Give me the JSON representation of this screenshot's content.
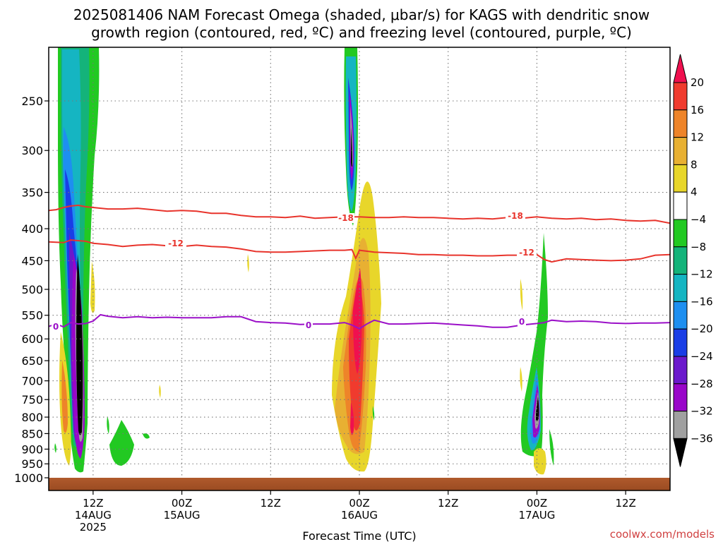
{
  "title_line1": "2025081406 NAM Forecast Omega (shaded, μbar/s) for KAGS with dendritic snow",
  "title_line2": "growth region (contoured, red, ºC) and freezing level (contoured, purple, ºC)",
  "credit": "coolwx.com/models",
  "chart_data": {
    "type": "time-height contour",
    "xlabel": "Forecast Time (UTC)",
    "ylabel": "",
    "y_scale": "log pressure (hPa), inverted",
    "ylim": [
      1000,
      200
    ],
    "y_ticks": [
      250,
      300,
      350,
      400,
      450,
      500,
      550,
      600,
      650,
      700,
      750,
      800,
      850,
      900,
      950,
      1000
    ],
    "x_ticks": [
      {
        "hours": 6,
        "label": "12Z",
        "sub1": "14AUG",
        "sub2": "2025"
      },
      {
        "hours": 18,
        "label": "00Z",
        "sub1": "15AUG",
        "sub2": ""
      },
      {
        "hours": 30,
        "label": "12Z",
        "sub1": "",
        "sub2": ""
      },
      {
        "hours": 42,
        "label": "00Z",
        "sub1": "16AUG",
        "sub2": ""
      },
      {
        "hours": 54,
        "label": "12Z",
        "sub1": "",
        "sub2": ""
      },
      {
        "hours": 66,
        "label": "00Z",
        "sub1": "17AUG",
        "sub2": ""
      },
      {
        "hours": 78,
        "label": "12Z",
        "sub1": "",
        "sub2": ""
      }
    ],
    "xlim_hours": [
      0,
      84
    ],
    "grid": true,
    "colorbar": {
      "levels": [
        20,
        16,
        12,
        8,
        4,
        -4,
        -8,
        -12,
        -16,
        -20,
        -24,
        -28,
        -32,
        -36
      ],
      "colors": [
        "#f0104f",
        "#f03b2e",
        "#ee8429",
        "#e8b032",
        "#e8d62a",
        "#ffffff",
        "#22c922",
        "#14b37a",
        "#15b5c2",
        "#1e8ff0",
        "#1a3ee6",
        "#6b19cc",
        "#9906c9",
        "#a0a0a0",
        "#000000"
      ]
    },
    "contour_labels": [
      {
        "text": "-18",
        "color": "#e8342c"
      },
      {
        "text": "-18",
        "color": "#e8342c"
      },
      {
        "text": "-12",
        "color": "#e8342c"
      },
      {
        "text": "-12",
        "color": "#e8342c"
      },
      {
        "text": "0",
        "color": "#9b10c8"
      },
      {
        "text": "0",
        "color": "#9b10c8"
      },
      {
        "text": "0",
        "color": "#9b10c8"
      }
    ],
    "isotherms": [
      {
        "name": "-18",
        "color": "#e8342c",
        "points": [
          [
            0,
            374
          ],
          [
            1,
            373
          ],
          [
            2,
            370
          ],
          [
            3,
            368
          ],
          [
            4,
            367
          ],
          [
            5,
            369
          ],
          [
            6,
            370
          ],
          [
            8,
            372
          ],
          [
            10,
            372
          ],
          [
            12,
            371
          ],
          [
            14,
            373
          ],
          [
            16,
            375
          ],
          [
            18,
            374
          ],
          [
            20,
            375
          ],
          [
            22,
            378
          ],
          [
            24,
            378
          ],
          [
            26,
            381
          ],
          [
            28,
            383
          ],
          [
            30,
            383
          ],
          [
            32,
            384
          ],
          [
            34,
            382
          ],
          [
            36,
            385
          ],
          [
            38,
            384
          ],
          [
            40,
            383
          ],
          [
            42,
            383
          ],
          [
            44,
            384
          ],
          [
            46,
            384
          ],
          [
            48,
            383
          ],
          [
            50,
            384
          ],
          [
            52,
            384
          ],
          [
            54,
            385
          ],
          [
            56,
            386
          ],
          [
            58,
            385
          ],
          [
            60,
            386
          ],
          [
            62,
            384
          ],
          [
            64,
            385
          ],
          [
            66,
            383
          ],
          [
            68,
            385
          ],
          [
            70,
            386
          ],
          [
            72,
            385
          ],
          [
            74,
            387
          ],
          [
            76,
            386
          ],
          [
            78,
            388
          ],
          [
            80,
            389
          ],
          [
            82,
            388
          ],
          [
            84,
            392
          ]
        ]
      },
      {
        "name": "-12",
        "color": "#e8342c",
        "points": [
          [
            0,
            420
          ],
          [
            2,
            421
          ],
          [
            3,
            417
          ],
          [
            4,
            418
          ],
          [
            5,
            419
          ],
          [
            6,
            422
          ],
          [
            8,
            424
          ],
          [
            10,
            427
          ],
          [
            12,
            425
          ],
          [
            14,
            424
          ],
          [
            16,
            426
          ],
          [
            18,
            427
          ],
          [
            20,
            425
          ],
          [
            22,
            427
          ],
          [
            24,
            428
          ],
          [
            26,
            431
          ],
          [
            28,
            435
          ],
          [
            30,
            436
          ],
          [
            32,
            436
          ],
          [
            34,
            435
          ],
          [
            36,
            434
          ],
          [
            38,
            433
          ],
          [
            40,
            433
          ],
          [
            41,
            432
          ],
          [
            41.5,
            446
          ],
          [
            42,
            433
          ],
          [
            44,
            436
          ],
          [
            46,
            437
          ],
          [
            48,
            438
          ],
          [
            50,
            440
          ],
          [
            52,
            440
          ],
          [
            54,
            441
          ],
          [
            56,
            441
          ],
          [
            58,
            442
          ],
          [
            60,
            442
          ],
          [
            62,
            441
          ],
          [
            64,
            441
          ],
          [
            66,
            440
          ],
          [
            67,
            448
          ],
          [
            68,
            452
          ],
          [
            70,
            447
          ],
          [
            72,
            448
          ],
          [
            74,
            449
          ],
          [
            76,
            450
          ],
          [
            78,
            449
          ],
          [
            80,
            447
          ],
          [
            82,
            441
          ],
          [
            84,
            440
          ]
        ]
      },
      {
        "name": "0",
        "color": "#9b10c8",
        "points": [
          [
            0,
            573
          ],
          [
            1,
            568
          ],
          [
            2,
            574
          ],
          [
            3,
            565
          ],
          [
            4,
            568
          ],
          [
            5,
            567
          ],
          [
            6,
            562
          ],
          [
            7,
            549
          ],
          [
            8,
            552
          ],
          [
            10,
            555
          ],
          [
            12,
            553
          ],
          [
            14,
            555
          ],
          [
            16,
            554
          ],
          [
            18,
            555
          ],
          [
            20,
            555
          ],
          [
            22,
            555
          ],
          [
            24,
            553
          ],
          [
            26,
            553
          ],
          [
            28,
            563
          ],
          [
            30,
            565
          ],
          [
            32,
            566
          ],
          [
            34,
            569
          ],
          [
            36,
            568
          ],
          [
            38,
            568
          ],
          [
            40,
            565
          ],
          [
            41,
            570
          ],
          [
            42,
            578
          ],
          [
            43,
            568
          ],
          [
            44,
            560
          ],
          [
            46,
            568
          ],
          [
            48,
            568
          ],
          [
            50,
            567
          ],
          [
            52,
            566
          ],
          [
            54,
            568
          ],
          [
            56,
            570
          ],
          [
            58,
            572
          ],
          [
            60,
            575
          ],
          [
            62,
            575
          ],
          [
            64,
            570
          ],
          [
            66,
            567
          ],
          [
            67,
            565
          ],
          [
            68,
            560
          ],
          [
            70,
            563
          ],
          [
            72,
            562
          ],
          [
            74,
            563
          ],
          [
            76,
            566
          ],
          [
            78,
            567
          ],
          [
            80,
            566
          ],
          [
            82,
            566
          ],
          [
            84,
            565
          ]
        ]
      }
    ]
  }
}
